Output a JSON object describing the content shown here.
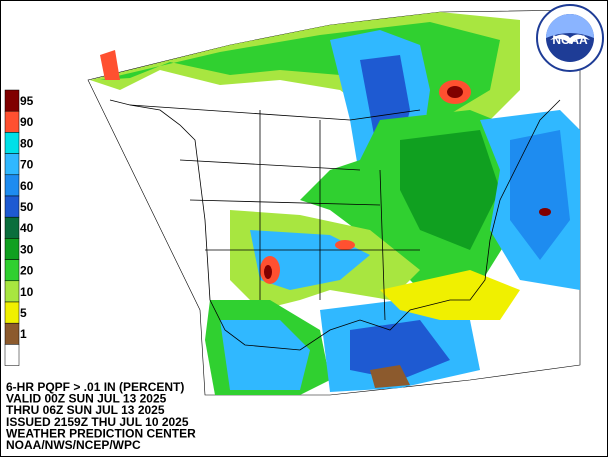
{
  "logo": {
    "text": "NOAA"
  },
  "legend": [
    {
      "label": "95",
      "color": "#800000"
    },
    {
      "label": "90",
      "color": "#ff5030"
    },
    {
      "label": "80",
      "color": "#00e0e8"
    },
    {
      "label": "70",
      "color": "#30b8ff"
    },
    {
      "label": "60",
      "color": "#1e8cf0"
    },
    {
      "label": "50",
      "color": "#1e5ad2"
    },
    {
      "label": "40",
      "color": "#0a6e3c"
    },
    {
      "label": "30",
      "color": "#10a020"
    },
    {
      "label": "20",
      "color": "#30d030"
    },
    {
      "label": "10",
      "color": "#a8e640"
    },
    {
      "label": "5",
      "color": "#f0f000"
    },
    {
      "label": "1",
      "color": "#8c5a2d"
    },
    {
      "label": "",
      "color": "#ffffff"
    }
  ],
  "footer": [
    "6-HR PQPF > .01 IN (PERCENT)",
    "VALID 00Z SUN JUL 13 2025",
    "THRU 06Z SUN JUL 13 2025",
    "ISSUED 2159Z THU JUL 10 2025",
    "WEATHER PREDICTION CENTER",
    "NOAA/NWS/NCEP/WPC"
  ]
}
